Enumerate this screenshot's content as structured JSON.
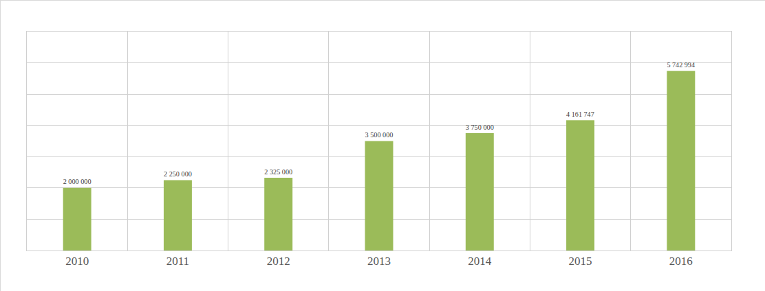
{
  "chart_data": {
    "type": "bar",
    "categories": [
      "2010",
      "2011",
      "2012",
      "2013",
      "2014",
      "2015",
      "2016"
    ],
    "values": [
      2000000,
      2250000,
      2325000,
      3500000,
      3750000,
      4161747,
      5742994
    ],
    "value_labels": [
      "2 000 000",
      "2 250 000",
      "2 325 000",
      "3 500 000",
      "3 750 000",
      "4 161 747",
      "5 742 994"
    ],
    "color": "#9bbb59",
    "ylim": [
      0,
      7000000
    ],
    "yticks": [
      0,
      1000000,
      2000000,
      3000000,
      4000000,
      5000000,
      6000000,
      7000000
    ],
    "grid": true,
    "data_labels": true,
    "tick_labels": "x"
  }
}
